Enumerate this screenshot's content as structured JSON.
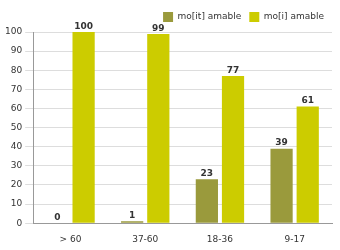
{
  "chart_data": {
    "type": "bar",
    "categories": [
      "> 60",
      "37-60",
      "18-36",
      "9-17"
    ],
    "series": [
      {
        "name": "mo[it] amable",
        "color": "#9a9a3c",
        "values": [
          0,
          1,
          23,
          39
        ]
      },
      {
        "name": "mo[i] amable",
        "color": "#cccc00",
        "values": [
          100,
          99,
          77,
          61
        ]
      }
    ],
    "ylim": [
      0,
      100
    ],
    "yticks": [
      0,
      10,
      20,
      30,
      40,
      50,
      60,
      70,
      80,
      90,
      100
    ],
    "grid": true,
    "legend": "top-right",
    "data_labels": true
  }
}
